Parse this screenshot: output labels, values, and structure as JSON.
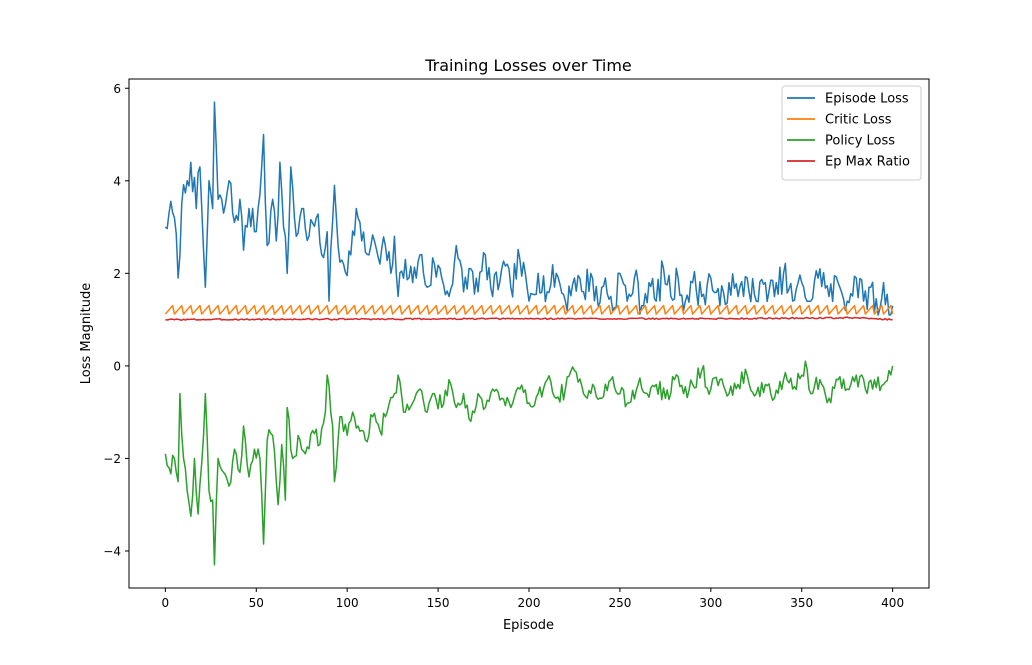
{
  "chart_data": {
    "type": "line",
    "title": "Training Losses over Time",
    "xlabel": "Episode",
    "ylabel": "Loss Magnitude",
    "xlim": [
      -20,
      420
    ],
    "ylim": [
      -4.8,
      6.2
    ],
    "xticks": [
      0,
      50,
      100,
      150,
      200,
      250,
      300,
      350,
      400
    ],
    "yticks": [
      -4,
      -2,
      0,
      2,
      4,
      6
    ],
    "xtick_labels": [
      "0",
      "50",
      "100",
      "150",
      "200",
      "250",
      "300",
      "350",
      "400"
    ],
    "ytick_labels": [
      "−4",
      "−2",
      "0",
      "2",
      "4",
      "6"
    ],
    "grid": false,
    "legend_position": "top-right",
    "series": [
      {
        "name": "Episode Loss",
        "color": "#1f77b4",
        "anchors": [
          [
            0,
            3.0
          ],
          [
            2,
            3.3
          ],
          [
            5,
            3.2
          ],
          [
            7,
            1.9
          ],
          [
            9,
            3.5
          ],
          [
            12,
            4.0
          ],
          [
            14,
            4.4
          ],
          [
            17,
            3.4
          ],
          [
            19,
            4.3
          ],
          [
            21,
            2.5
          ],
          [
            22,
            1.7
          ],
          [
            24,
            4.0
          ],
          [
            26,
            3.4
          ],
          [
            27,
            5.7
          ],
          [
            29,
            3.6
          ],
          [
            32,
            3.3
          ],
          [
            35,
            4.0
          ],
          [
            38,
            3.1
          ],
          [
            41,
            3.6
          ],
          [
            43,
            2.5
          ],
          [
            46,
            3.4
          ],
          [
            49,
            2.9
          ],
          [
            52,
            3.7
          ],
          [
            54,
            5.0
          ],
          [
            56,
            2.6
          ],
          [
            59,
            3.6
          ],
          [
            61,
            2.7
          ],
          [
            63,
            4.4
          ],
          [
            65,
            3.0
          ],
          [
            67,
            2.0
          ],
          [
            69,
            4.3
          ],
          [
            72,
            2.8
          ],
          [
            75,
            3.4
          ],
          [
            79,
            2.8
          ],
          [
            83,
            3.2
          ],
          [
            86,
            2.4
          ],
          [
            89,
            2.9
          ],
          [
            90,
            1.4
          ],
          [
            93,
            3.9
          ],
          [
            95,
            2.6
          ],
          [
            98,
            2.2
          ],
          [
            102,
            2.4
          ],
          [
            105,
            3.4
          ],
          [
            108,
            2.7
          ],
          [
            112,
            2.4
          ],
          [
            115,
            2.7
          ],
          [
            118,
            2.2
          ],
          [
            121,
            2.6
          ],
          [
            124,
            2.0
          ],
          [
            126,
            2.8
          ],
          [
            128,
            1.5
          ],
          [
            132,
            2.3
          ],
          [
            136,
            1.8
          ],
          [
            140,
            2.4
          ],
          [
            144,
            1.7
          ],
          [
            148,
            2.2
          ],
          [
            152,
            1.9
          ],
          [
            156,
            1.5
          ],
          [
            160,
            2.6
          ],
          [
            164,
            1.6
          ],
          [
            168,
            2.1
          ],
          [
            172,
            1.6
          ],
          [
            176,
            2.4
          ],
          [
            180,
            1.5
          ],
          [
            185,
            2.1
          ],
          [
            190,
            1.7
          ],
          [
            195,
            2.3
          ],
          [
            200,
            1.4
          ],
          [
            205,
            2.0
          ],
          [
            210,
            1.6
          ],
          [
            215,
            2.0
          ],
          [
            220,
            1.4
          ],
          [
            225,
            1.9
          ],
          [
            230,
            1.6
          ],
          [
            234,
            2.0
          ],
          [
            238,
            1.3
          ],
          [
            242,
            1.9
          ],
          [
            246,
            1.2
          ],
          [
            250,
            2.0
          ],
          [
            254,
            1.4
          ],
          [
            258,
            1.9
          ],
          [
            262,
            1.3
          ],
          [
            266,
            1.8
          ],
          [
            270,
            1.4
          ],
          [
            274,
            2.1
          ],
          [
            278,
            1.5
          ],
          [
            282,
            1.9
          ],
          [
            286,
            1.4
          ],
          [
            290,
            1.8
          ],
          [
            295,
            1.5
          ],
          [
            300,
            1.9
          ],
          [
            305,
            1.3
          ],
          [
            310,
            1.8
          ],
          [
            315,
            1.5
          ],
          [
            320,
            1.9
          ],
          [
            325,
            1.4
          ],
          [
            330,
            1.8
          ],
          [
            335,
            1.5
          ],
          [
            340,
            2.0
          ],
          [
            345,
            1.4
          ],
          [
            350,
            1.8
          ],
          [
            355,
            1.4
          ],
          [
            360,
            2.1
          ],
          [
            365,
            1.5
          ],
          [
            370,
            1.8
          ],
          [
            375,
            1.4
          ],
          [
            380,
            1.9
          ],
          [
            384,
            1.4
          ],
          [
            388,
            1.7
          ],
          [
            392,
            1.1
          ],
          [
            395,
            1.8
          ],
          [
            398,
            1.1
          ],
          [
            400,
            1.3
          ]
        ],
        "noise": 0.35,
        "seed": 7
      },
      {
        "name": "Critic Loss",
        "color": "#ff7f0e",
        "pattern": "sawtooth",
        "x_start": 0,
        "x_end": 400,
        "period": 5,
        "low": 1.12,
        "high": 1.35
      },
      {
        "name": "Policy Loss",
        "color": "#2ca02c",
        "anchors": [
          [
            0,
            -1.9
          ],
          [
            2,
            -2.2
          ],
          [
            5,
            -2.0
          ],
          [
            7,
            -2.5
          ],
          [
            8,
            -0.6
          ],
          [
            10,
            -2.0
          ],
          [
            12,
            -2.7
          ],
          [
            14,
            -3.25
          ],
          [
            16,
            -2.0
          ],
          [
            18,
            -3.2
          ],
          [
            21,
            -1.5
          ],
          [
            22,
            -0.6
          ],
          [
            24,
            -2.7
          ],
          [
            26,
            -2.9
          ],
          [
            27,
            -4.3
          ],
          [
            29,
            -2.0
          ],
          [
            32,
            -2.3
          ],
          [
            35,
            -2.6
          ],
          [
            38,
            -1.8
          ],
          [
            41,
            -2.3
          ],
          [
            43,
            -1.3
          ],
          [
            46,
            -2.4
          ],
          [
            49,
            -1.8
          ],
          [
            52,
            -2.0
          ],
          [
            54,
            -3.85
          ],
          [
            56,
            -1.6
          ],
          [
            59,
            -1.5
          ],
          [
            62,
            -3.0
          ],
          [
            64,
            -1.7
          ],
          [
            66,
            -2.9
          ],
          [
            67,
            -0.9
          ],
          [
            70,
            -2.0
          ],
          [
            74,
            -1.6
          ],
          [
            77,
            -1.9
          ],
          [
            81,
            -1.4
          ],
          [
            85,
            -1.7
          ],
          [
            88,
            -1.0
          ],
          [
            89,
            -0.2
          ],
          [
            92,
            -1.3
          ],
          [
            93,
            -2.5
          ],
          [
            96,
            -1.1
          ],
          [
            100,
            -1.5
          ],
          [
            103,
            -1.0
          ],
          [
            106,
            -1.3
          ],
          [
            110,
            -1.6
          ],
          [
            114,
            -1.1
          ],
          [
            118,
            -1.4
          ],
          [
            122,
            -1.0
          ],
          [
            126,
            -0.6
          ],
          [
            128,
            -0.2
          ],
          [
            132,
            -1.0
          ],
          [
            136,
            -0.8
          ],
          [
            140,
            -0.5
          ],
          [
            144,
            -1.0
          ],
          [
            148,
            -0.6
          ],
          [
            152,
            -0.9
          ],
          [
            156,
            -0.3
          ],
          [
            160,
            -0.9
          ],
          [
            164,
            -0.6
          ],
          [
            168,
            -1.2
          ],
          [
            172,
            -0.6
          ],
          [
            176,
            -0.9
          ],
          [
            180,
            -0.5
          ],
          [
            185,
            -0.7
          ],
          [
            190,
            -0.9
          ],
          [
            195,
            -0.5
          ],
          [
            200,
            -0.8
          ],
          [
            205,
            -0.6
          ],
          [
            210,
            -0.3
          ],
          [
            215,
            -0.7
          ],
          [
            220,
            -0.5
          ],
          [
            225,
            -0.1
          ],
          [
            230,
            -0.6
          ],
          [
            235,
            -0.4
          ],
          [
            240,
            -0.7
          ],
          [
            245,
            -0.3
          ],
          [
            250,
            -0.6
          ],
          [
            255,
            -0.8
          ],
          [
            260,
            -0.4
          ],
          [
            265,
            -0.6
          ],
          [
            270,
            -0.4
          ],
          [
            275,
            -0.7
          ],
          [
            280,
            -0.3
          ],
          [
            285,
            -0.6
          ],
          [
            290,
            -0.4
          ],
          [
            295,
            -0.1
          ],
          [
            300,
            -0.5
          ],
          [
            305,
            -0.3
          ],
          [
            310,
            -0.6
          ],
          [
            315,
            -0.4
          ],
          [
            320,
            -0.2
          ],
          [
            325,
            -0.6
          ],
          [
            330,
            -0.4
          ],
          [
            335,
            -0.7
          ],
          [
            340,
            -0.3
          ],
          [
            345,
            -0.5
          ],
          [
            350,
            -0.2
          ],
          [
            352,
            0.1
          ],
          [
            355,
            -0.6
          ],
          [
            360,
            -0.3
          ],
          [
            365,
            -0.7
          ],
          [
            370,
            -0.3
          ],
          [
            375,
            -0.5
          ],
          [
            380,
            -0.2
          ],
          [
            385,
            -0.5
          ],
          [
            390,
            -0.3
          ],
          [
            395,
            -0.4
          ],
          [
            398,
            -0.1
          ],
          [
            400,
            0.0
          ]
        ],
        "noise": 0.2,
        "seed": 19
      },
      {
        "name": "Ep Max Ratio",
        "color": "#d62728",
        "anchors": [
          [
            0,
            1.0
          ],
          [
            100,
            1.01
          ],
          [
            200,
            1.02
          ],
          [
            300,
            1.02
          ],
          [
            380,
            1.04
          ],
          [
            390,
            1.02
          ],
          [
            400,
            1.0
          ]
        ],
        "noise": 0.015,
        "seed": 3
      }
    ]
  }
}
